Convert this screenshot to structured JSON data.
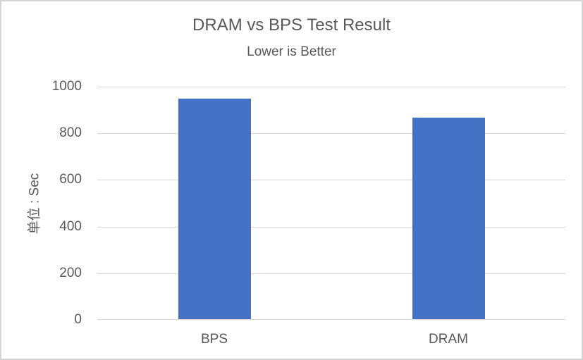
{
  "chart_data": {
    "type": "bar",
    "title": "DRAM vs BPS Test Result",
    "subtitle": "Lower is Better",
    "ylabel": "单位 : Sec",
    "xlabel": "",
    "categories": [
      "BPS",
      "DRAM"
    ],
    "values": [
      945,
      864
    ],
    "ylim": [
      0,
      1000
    ],
    "yticks": [
      0,
      200,
      400,
      600,
      800,
      1000
    ],
    "grid": true,
    "legend": false,
    "colors": {
      "bar": "#4472C4",
      "text": "#595959",
      "gridline": "#D9D9D9",
      "axis_line": "#D9D9D9",
      "frame_border": "#D6D6D6",
      "background": "#FFFFFF"
    }
  }
}
